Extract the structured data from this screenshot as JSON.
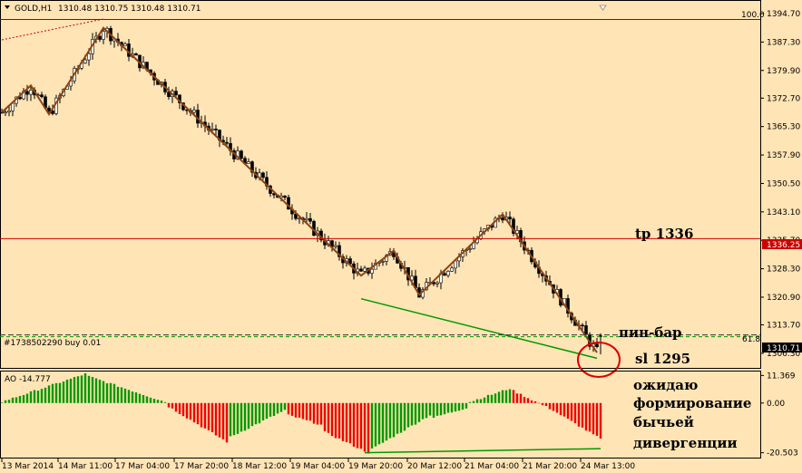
{
  "header": {
    "symbol": "GOLD,H1",
    "ohlc": "1310.48 1310.75 1310.48 1310.71"
  },
  "colors": {
    "background": "#FFE4B5",
    "candle": "#000000",
    "zigzag": "#8B4513",
    "tp_line": "#CC0000",
    "trend_line": "#009900",
    "ao_up": "#009900",
    "ao_down": "#EE0000",
    "circle": "#DD0000"
  },
  "labels": {
    "fib_100": "100.0",
    "fib_618": "61.8",
    "order": "#1738502290 buy 0.01",
    "tp_tag": "1336.25",
    "price_tag": "1310.71",
    "ao_title": "AO -14.777",
    "tp_note": "tp 1336",
    "pinbar_note": "пин-бар",
    "sl_note": "sl 1295",
    "note_line1": "ожидаю",
    "note_line2": "формирование",
    "note_line3": "бычьей",
    "note_line4": "дивергенции"
  },
  "chart_data": {
    "type": "candlestick",
    "price_axis": [
      "1394.70",
      "1387.30",
      "1379.90",
      "1372.70",
      "1365.30",
      "1357.90",
      "1350.50",
      "1343.10",
      "1335.70",
      "1328.30",
      "1320.90",
      "1313.70",
      "1306.30"
    ],
    "price_range": [
      1302.5,
      1398.0
    ],
    "ao_axis": [
      "11.369",
      "0.00",
      "-20.503"
    ],
    "ao_range": [
      -22.5,
      13.0
    ],
    "time_axis": [
      "13 Mar 2014",
      "14 Mar 11:00",
      "17 Mar 04:00",
      "17 Mar 20:00",
      "18 Mar 12:00",
      "19 Mar 04:00",
      "19 Mar 20:00",
      "20 Mar 12:00",
      "21 Mar 04:00",
      "21 Mar 20:00",
      "24 Mar 13:00"
    ],
    "tp_level": 1336.25,
    "current_price": 1310.71,
    "fib_618_level": 1311.2,
    "zigzag": [
      {
        "bar": 0,
        "price": 1369.0
      },
      {
        "bar": 8,
        "price": 1376.0
      },
      {
        "bar": 13,
        "price": 1368.5
      },
      {
        "bar": 28,
        "price": 1391.0
      },
      {
        "bar": 99,
        "price": 1326.5
      },
      {
        "bar": 108,
        "price": 1333.0
      },
      {
        "bar": 115,
        "price": 1321.5
      },
      {
        "bar": 138,
        "price": 1342.5
      },
      {
        "bar": 164,
        "price": 1306.5
      }
    ],
    "trend_line_price": [
      {
        "bar": 99,
        "price": 1320.5
      },
      {
        "bar": 164,
        "price": 1305.0
      }
    ],
    "trend_line_ao": [
      {
        "bar": 100,
        "value": -20.5
      },
      {
        "bar": 165,
        "value": -18.8
      }
    ],
    "ao_series": [
      {
        "from": 0,
        "to": 23,
        "start": 0.5,
        "end": 12.0,
        "color": "green"
      },
      {
        "from": 24,
        "to": 45,
        "start": 11.0,
        "end": 0.5,
        "color": "green"
      },
      {
        "from": 46,
        "to": 62,
        "start": -1.5,
        "end": -16.0,
        "color": "red"
      },
      {
        "from": 63,
        "to": 78,
        "start": -14.0,
        "end": -3.0,
        "color": "green"
      },
      {
        "from": 79,
        "to": 88,
        "start": -5.0,
        "end": -9.0,
        "color": "red"
      },
      {
        "from": 89,
        "to": 101,
        "start": -12.0,
        "end": -20.5,
        "color": "red"
      },
      {
        "from": 102,
        "to": 118,
        "start": -19.0,
        "end": -5.0,
        "color": "green"
      },
      {
        "from": 119,
        "to": 128,
        "start": -6.0,
        "end": -2.0,
        "color": "green"
      },
      {
        "from": 129,
        "to": 140,
        "start": 0.5,
        "end": 6.0,
        "color": "green"
      },
      {
        "from": 141,
        "to": 152,
        "start": 5.0,
        "end": -3.0,
        "color": "red"
      },
      {
        "from": 153,
        "to": 165,
        "start": -4.0,
        "end": -14.8,
        "color": "red"
      }
    ]
  }
}
